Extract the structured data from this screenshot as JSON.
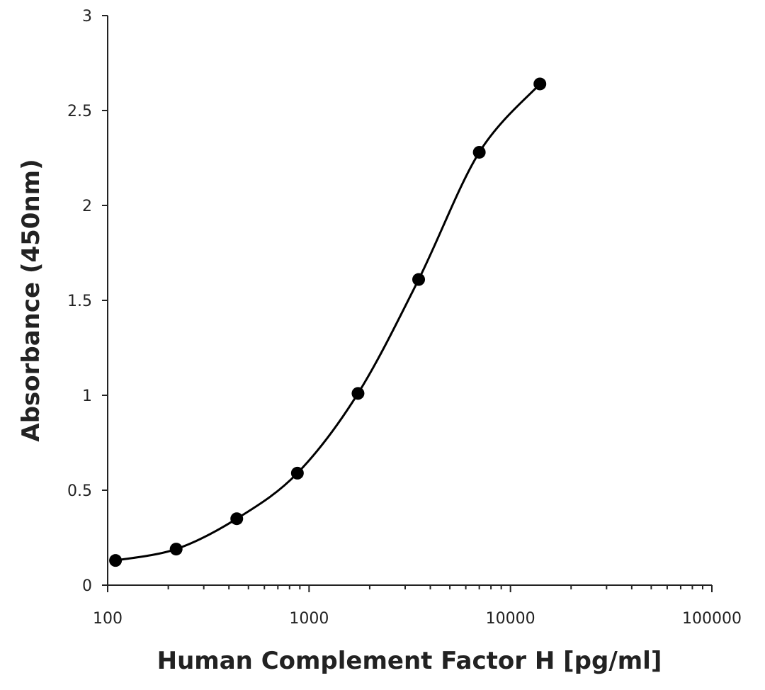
{
  "chart_data": {
    "type": "scatter",
    "xlabel": "Human Complement Factor H [pg/ml]",
    "ylabel": "Absorbance (450nm)",
    "x_scale": "log",
    "xlim": [
      100,
      100000
    ],
    "ylim": [
      0,
      3
    ],
    "x_ticks": [
      "100",
      "1000",
      "10000",
      "100000"
    ],
    "y_ticks": [
      "0",
      "0.5",
      "1",
      "1.5",
      "2",
      "2.5",
      "3"
    ],
    "grid": false,
    "series": [
      {
        "x": [
          109.4,
          218.8,
          437.5,
          875,
          1750,
          3500,
          7000,
          14000
        ],
        "y": [
          0.13,
          0.19,
          0.35,
          0.59,
          1.01,
          1.61,
          2.28,
          2.64
        ],
        "smoothed_line": true,
        "marker": "circle",
        "color": "#000000"
      }
    ]
  }
}
